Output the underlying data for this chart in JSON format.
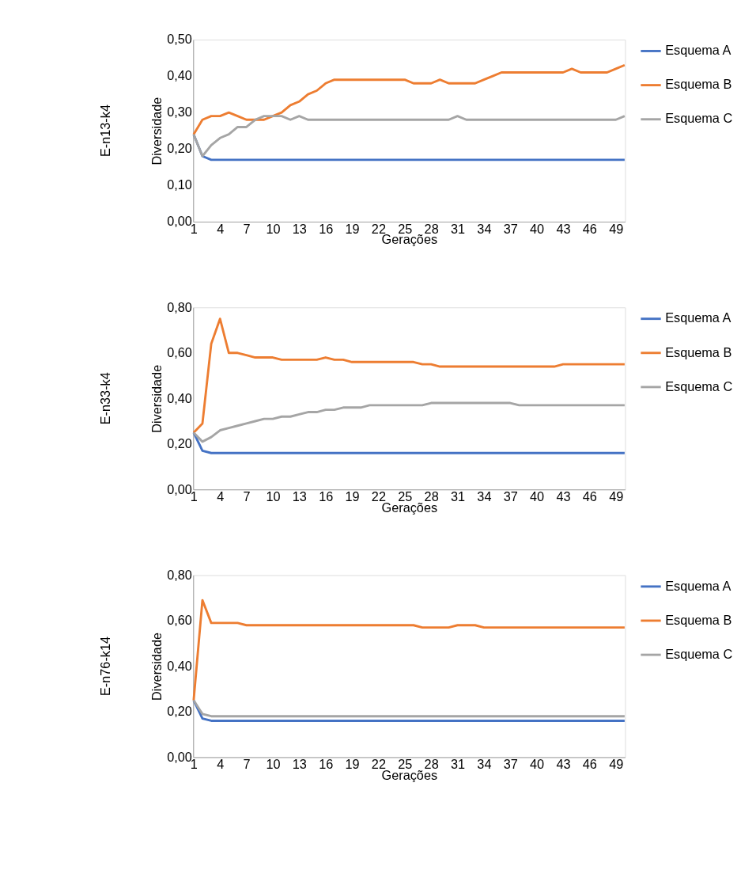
{
  "chart_data": [
    {
      "type": "line",
      "xlabel": "Gerações",
      "ylabel": "Diversidade",
      "annotations": [
        "E-n13-k4"
      ],
      "legend": "right",
      "grid": false,
      "marker": "none",
      "line_style": "solid",
      "categories": [
        "1",
        null,
        null,
        "4",
        null,
        null,
        "7",
        null,
        null,
        "10",
        null,
        null,
        "13",
        null,
        null,
        "16",
        null,
        null,
        "19",
        null,
        null,
        "22",
        null,
        null,
        "25",
        null,
        null,
        "28",
        null,
        null,
        "31",
        null,
        null,
        "34",
        null,
        null,
        "37",
        null,
        null,
        "40",
        null,
        null,
        "43",
        null,
        null,
        "46",
        null,
        null,
        "49",
        null
      ],
      "ylim": [
        0,
        0.5
      ],
      "yticks": [
        {
          "value": 0,
          "label": "0,00"
        },
        {
          "value": 0.1,
          "label": "0,10"
        },
        {
          "value": 0.2,
          "label": "0,20"
        },
        {
          "value": 0.3,
          "label": "0,30"
        },
        {
          "value": 0.4,
          "label": "0,40"
        },
        {
          "value": 0.5,
          "label": "0,50"
        }
      ],
      "series": [
        {
          "name": "Esquema A",
          "color": "#4472c4",
          "values": [
            0.24,
            0.18,
            0.17,
            0.17,
            0.17,
            0.17,
            0.17,
            0.17,
            0.17,
            0.17,
            0.17,
            0.17,
            0.17,
            0.17,
            0.17,
            0.17,
            0.17,
            0.17,
            0.17,
            0.17,
            0.17,
            0.17,
            0.17,
            0.17,
            0.17,
            0.17,
            0.17,
            0.17,
            0.17,
            0.17,
            0.17,
            0.17,
            0.17,
            0.17,
            0.17,
            0.17,
            0.17,
            0.17,
            0.17,
            0.17,
            0.17,
            0.17,
            0.17,
            0.17,
            0.17,
            0.17,
            0.17,
            0.17,
            0.17,
            0.17
          ]
        },
        {
          "name": "Esquema B",
          "color": "#ed7d31",
          "values": [
            0.24,
            0.28,
            0.29,
            0.29,
            0.3,
            0.29,
            0.28,
            0.28,
            0.28,
            0.29,
            0.3,
            0.32,
            0.33,
            0.35,
            0.36,
            0.38,
            0.39,
            0.39,
            0.39,
            0.39,
            0.39,
            0.39,
            0.39,
            0.39,
            0.39,
            0.38,
            0.38,
            0.38,
            0.39,
            0.38,
            0.38,
            0.38,
            0.38,
            0.39,
            0.4,
            0.41,
            0.41,
            0.41,
            0.41,
            0.41,
            0.41,
            0.41,
            0.41,
            0.42,
            0.41,
            0.41,
            0.41,
            0.41,
            0.42,
            0.43
          ]
        },
        {
          "name": "Esquema C",
          "color": "#a5a5a5",
          "values": [
            0.24,
            0.18,
            0.21,
            0.23,
            0.24,
            0.26,
            0.26,
            0.28,
            0.29,
            0.29,
            0.29,
            0.28,
            0.29,
            0.28,
            0.28,
            0.28,
            0.28,
            0.28,
            0.28,
            0.28,
            0.28,
            0.28,
            0.28,
            0.28,
            0.28,
            0.28,
            0.28,
            0.28,
            0.28,
            0.28,
            0.29,
            0.28,
            0.28,
            0.28,
            0.28,
            0.28,
            0.28,
            0.28,
            0.28,
            0.28,
            0.28,
            0.28,
            0.28,
            0.28,
            0.28,
            0.28,
            0.28,
            0.28,
            0.28,
            0.29
          ]
        }
      ]
    },
    {
      "type": "line",
      "xlabel": "Gerações",
      "ylabel": "Diversidade",
      "annotations": [
        "E-n33-k4"
      ],
      "legend": "right",
      "grid": false,
      "marker": "none",
      "line_style": "solid",
      "categories": [
        "1",
        null,
        null,
        "4",
        null,
        null,
        "7",
        null,
        null,
        "10",
        null,
        null,
        "13",
        null,
        null,
        "16",
        null,
        null,
        "19",
        null,
        null,
        "22",
        null,
        null,
        "25",
        null,
        null,
        "28",
        null,
        null,
        "31",
        null,
        null,
        "34",
        null,
        null,
        "37",
        null,
        null,
        "40",
        null,
        null,
        "43",
        null,
        null,
        "46",
        null,
        null,
        "49",
        null
      ],
      "ylim": [
        0,
        0.8
      ],
      "yticks": [
        {
          "value": 0,
          "label": "0,00"
        },
        {
          "value": 0.2,
          "label": "0,20"
        },
        {
          "value": 0.4,
          "label": "0,40"
        },
        {
          "value": 0.6,
          "label": "0,60"
        },
        {
          "value": 0.8,
          "label": "0,80"
        }
      ],
      "series": [
        {
          "name": "Esquema A",
          "color": "#4472c4",
          "values": [
            0.25,
            0.17,
            0.16,
            0.16,
            0.16,
            0.16,
            0.16,
            0.16,
            0.16,
            0.16,
            0.16,
            0.16,
            0.16,
            0.16,
            0.16,
            0.16,
            0.16,
            0.16,
            0.16,
            0.16,
            0.16,
            0.16,
            0.16,
            0.16,
            0.16,
            0.16,
            0.16,
            0.16,
            0.16,
            0.16,
            0.16,
            0.16,
            0.16,
            0.16,
            0.16,
            0.16,
            0.16,
            0.16,
            0.16,
            0.16,
            0.16,
            0.16,
            0.16,
            0.16,
            0.16,
            0.16,
            0.16,
            0.16,
            0.16,
            0.16
          ]
        },
        {
          "name": "Esquema B",
          "color": "#ed7d31",
          "values": [
            0.25,
            0.29,
            0.64,
            0.75,
            0.6,
            0.6,
            0.59,
            0.58,
            0.58,
            0.58,
            0.57,
            0.57,
            0.57,
            0.57,
            0.57,
            0.58,
            0.57,
            0.57,
            0.56,
            0.56,
            0.56,
            0.56,
            0.56,
            0.56,
            0.56,
            0.56,
            0.55,
            0.55,
            0.54,
            0.54,
            0.54,
            0.54,
            0.54,
            0.54,
            0.54,
            0.54,
            0.54,
            0.54,
            0.54,
            0.54,
            0.54,
            0.54,
            0.55,
            0.55,
            0.55,
            0.55,
            0.55,
            0.55,
            0.55,
            0.55
          ]
        },
        {
          "name": "Esquema C",
          "color": "#a5a5a5",
          "values": [
            0.25,
            0.21,
            0.23,
            0.26,
            0.27,
            0.28,
            0.29,
            0.3,
            0.31,
            0.31,
            0.32,
            0.32,
            0.33,
            0.34,
            0.34,
            0.35,
            0.35,
            0.36,
            0.36,
            0.36,
            0.37,
            0.37,
            0.37,
            0.37,
            0.37,
            0.37,
            0.37,
            0.38,
            0.38,
            0.38,
            0.38,
            0.38,
            0.38,
            0.38,
            0.38,
            0.38,
            0.38,
            0.37,
            0.37,
            0.37,
            0.37,
            0.37,
            0.37,
            0.37,
            0.37,
            0.37,
            0.37,
            0.37,
            0.37,
            0.37
          ]
        }
      ]
    },
    {
      "type": "line",
      "xlabel": "Gerações",
      "ylabel": "Diversidade",
      "annotations": [
        "E-n76-k14"
      ],
      "legend": "right",
      "grid": false,
      "marker": "none",
      "line_style": "solid",
      "categories": [
        "1",
        null,
        null,
        "4",
        null,
        null,
        "7",
        null,
        null,
        "10",
        null,
        null,
        "13",
        null,
        null,
        "16",
        null,
        null,
        "19",
        null,
        null,
        "22",
        null,
        null,
        "25",
        null,
        null,
        "28",
        null,
        null,
        "31",
        null,
        null,
        "34",
        null,
        null,
        "37",
        null,
        null,
        "40",
        null,
        null,
        "43",
        null,
        null,
        "46",
        null,
        null,
        "49",
        null
      ],
      "ylim": [
        0,
        0.8
      ],
      "yticks": [
        {
          "value": 0,
          "label": "0,00"
        },
        {
          "value": 0.2,
          "label": "0,20"
        },
        {
          "value": 0.4,
          "label": "0,40"
        },
        {
          "value": 0.6,
          "label": "0,60"
        },
        {
          "value": 0.8,
          "label": "0,80"
        }
      ],
      "series": [
        {
          "name": "Esquema A",
          "color": "#4472c4",
          "values": [
            0.25,
            0.17,
            0.16,
            0.16,
            0.16,
            0.16,
            0.16,
            0.16,
            0.16,
            0.16,
            0.16,
            0.16,
            0.16,
            0.16,
            0.16,
            0.16,
            0.16,
            0.16,
            0.16,
            0.16,
            0.16,
            0.16,
            0.16,
            0.16,
            0.16,
            0.16,
            0.16,
            0.16,
            0.16,
            0.16,
            0.16,
            0.16,
            0.16,
            0.16,
            0.16,
            0.16,
            0.16,
            0.16,
            0.16,
            0.16,
            0.16,
            0.16,
            0.16,
            0.16,
            0.16,
            0.16,
            0.16,
            0.16,
            0.16,
            0.16
          ]
        },
        {
          "name": "Esquema B",
          "color": "#ed7d31",
          "values": [
            0.25,
            0.69,
            0.59,
            0.59,
            0.59,
            0.59,
            0.58,
            0.58,
            0.58,
            0.58,
            0.58,
            0.58,
            0.58,
            0.58,
            0.58,
            0.58,
            0.58,
            0.58,
            0.58,
            0.58,
            0.58,
            0.58,
            0.58,
            0.58,
            0.58,
            0.58,
            0.57,
            0.57,
            0.57,
            0.57,
            0.58,
            0.58,
            0.58,
            0.57,
            0.57,
            0.57,
            0.57,
            0.57,
            0.57,
            0.57,
            0.57,
            0.57,
            0.57,
            0.57,
            0.57,
            0.57,
            0.57,
            0.57,
            0.57,
            0.57
          ]
        },
        {
          "name": "Esquema C",
          "color": "#a5a5a5",
          "values": [
            0.25,
            0.19,
            0.18,
            0.18,
            0.18,
            0.18,
            0.18,
            0.18,
            0.18,
            0.18,
            0.18,
            0.18,
            0.18,
            0.18,
            0.18,
            0.18,
            0.18,
            0.18,
            0.18,
            0.18,
            0.18,
            0.18,
            0.18,
            0.18,
            0.18,
            0.18,
            0.18,
            0.18,
            0.18,
            0.18,
            0.18,
            0.18,
            0.18,
            0.18,
            0.18,
            0.18,
            0.18,
            0.18,
            0.18,
            0.18,
            0.18,
            0.18,
            0.18,
            0.18,
            0.18,
            0.18,
            0.18,
            0.18,
            0.18,
            0.18
          ]
        }
      ]
    }
  ]
}
